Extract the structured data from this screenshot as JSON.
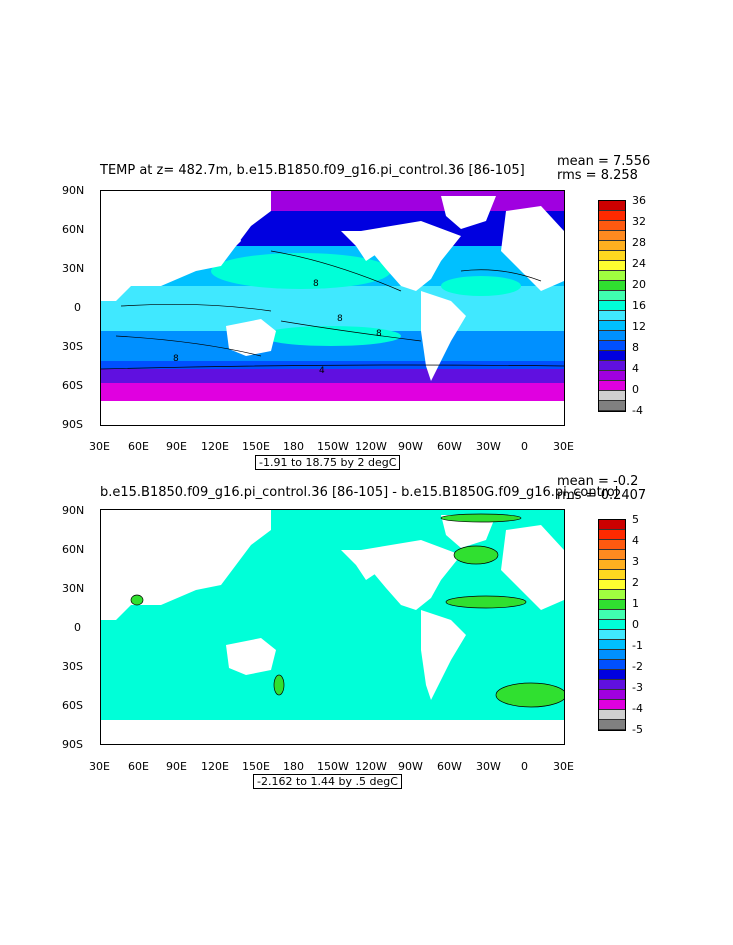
{
  "panel1": {
    "title": "TEMP at z= 482.7m, b.e15.B1850.f09_g16.pi_control.36 [86-105]",
    "mean": "mean = 7.556",
    "rms": "rms = 8.258",
    "range": "-1.91 to 18.75 by 2 degC",
    "colorbar_labels": [
      "36",
      "32",
      "28",
      "24",
      "20",
      "16",
      "12",
      "8",
      "4",
      "0",
      "-4"
    ],
    "colorbar_colors": [
      "#cc0000",
      "#ff2a00",
      "#ff5a10",
      "#ff8a20",
      "#ffb020",
      "#ffd820",
      "#ffff30",
      "#a0ff40",
      "#30e030",
      "#40ffb0",
      "#00ffd8",
      "#40e8ff",
      "#00c0ff",
      "#0090ff",
      "#0050ff",
      "#0000e0",
      "#6010e0",
      "#a000e0",
      "#e000e0",
      "#d0d0d0",
      "#808080"
    ]
  },
  "panel2": {
    "title": "b.e15.B1850.f09_g16.pi_control.36 [86-105] - b.e15.B1850G.f09_g16.pi_control",
    "mean": "mean = -0.2",
    "rms": "rms = 0.2407",
    "range": "-2.162 to 1.44 by .5 degC",
    "colorbar_labels": [
      "5",
      "4",
      "3",
      "2",
      "1",
      "0",
      "-1",
      "-2",
      "-3",
      "-4",
      "-5"
    ],
    "colorbar_colors": [
      "#cc0000",
      "#ff2a00",
      "#ff5a10",
      "#ff8a20",
      "#ffb020",
      "#ffd820",
      "#ffff30",
      "#a0ff40",
      "#30e030",
      "#40ffb0",
      "#00ffd8",
      "#40e8ff",
      "#00c0ff",
      "#0090ff",
      "#0050ff",
      "#0000e0",
      "#6010e0",
      "#a000e0",
      "#e000e0",
      "#d0d0d0",
      "#808080"
    ]
  },
  "axes": {
    "lat_labels": [
      "90N",
      "60N",
      "30N",
      "0",
      "30S",
      "60S",
      "90S"
    ],
    "lon_labels": [
      "30E",
      "60E",
      "90E",
      "120E",
      "150E",
      "180",
      "150W",
      "120W",
      "90W",
      "60W",
      "30W",
      "0",
      "30E"
    ]
  },
  "contour_labels": [
    "8",
    "8",
    "8",
    "8",
    "4"
  ]
}
